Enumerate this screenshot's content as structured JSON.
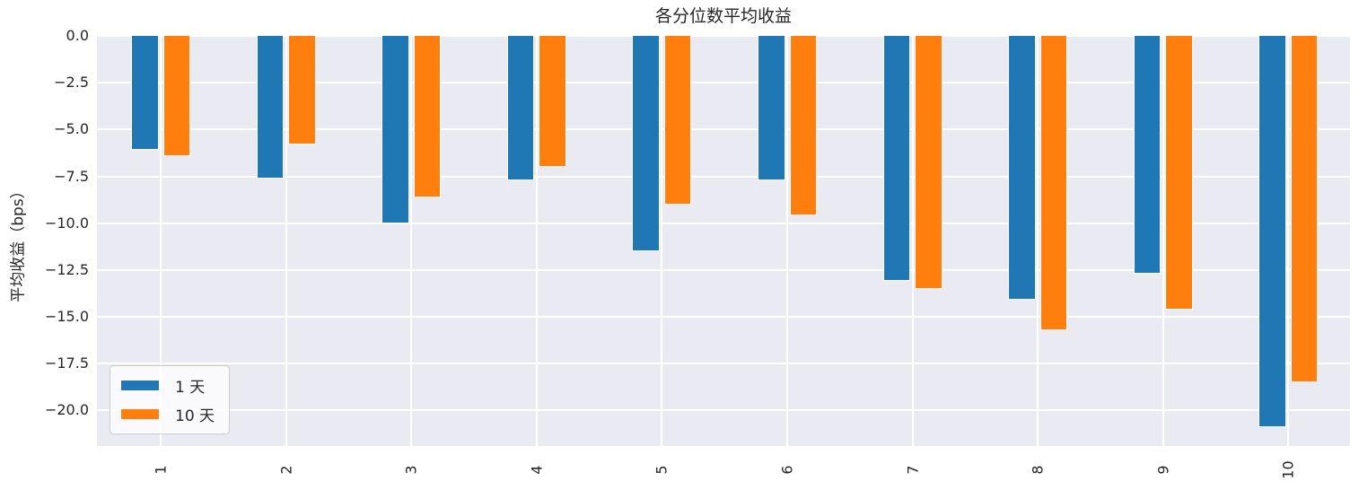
{
  "chart_data": {
    "type": "bar",
    "title": "各分位数平均收益",
    "xlabel": "",
    "ylabel": "平均收益（bps）",
    "categories": [
      "1",
      "2",
      "3",
      "4",
      "5",
      "6",
      "7",
      "8",
      "9",
      "10"
    ],
    "series": [
      {
        "name": "1 天",
        "color": "#1f77b4",
        "values": [
          -6.1,
          -7.6,
          -10.0,
          -7.7,
          -11.5,
          -7.7,
          -13.1,
          -14.1,
          -12.7,
          -20.9
        ]
      },
      {
        "name": "10 天",
        "color": "#ff7f0e",
        "values": [
          -6.4,
          -5.8,
          -8.6,
          -7.0,
          -9.0,
          -9.6,
          -13.5,
          -15.7,
          -14.6,
          -18.5
        ]
      }
    ],
    "yticks": [
      0.0,
      -2.5,
      -5.0,
      -7.5,
      -10.0,
      -12.5,
      -15.0,
      -17.5,
      -20.0
    ],
    "ylim": [
      -21.9,
      0
    ],
    "grid": true,
    "legend_position": "lower left",
    "colors": {
      "plot_background": "#eaeaf2",
      "figure_background": "#ffffff",
      "gridline": "#ffffff",
      "text": "#262626"
    }
  }
}
